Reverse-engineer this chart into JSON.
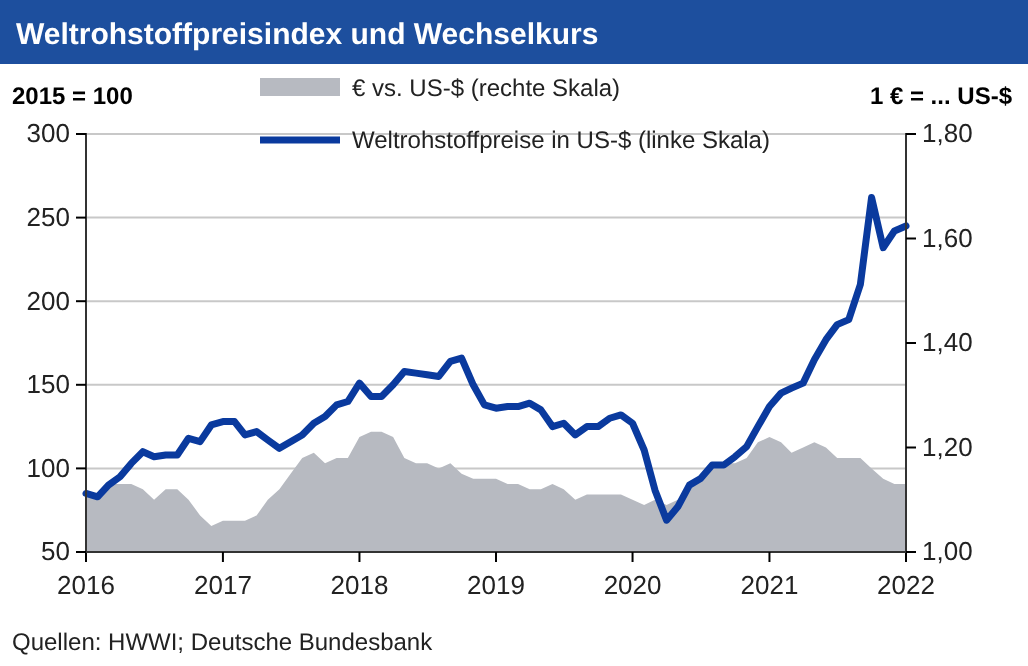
{
  "chart_data": {
    "type": "line",
    "title": "Weltrohstoffpreisindex und Wechselkurs",
    "ylabel": "2015 = 100",
    "y2label": "1 € = ... US-$",
    "x": [
      "2016-01",
      "2016-02",
      "2016-03",
      "2016-04",
      "2016-05",
      "2016-06",
      "2016-07",
      "2016-08",
      "2016-09",
      "2016-10",
      "2016-11",
      "2016-12",
      "2017-01",
      "2017-02",
      "2017-03",
      "2017-04",
      "2017-05",
      "2017-06",
      "2017-07",
      "2017-08",
      "2017-09",
      "2017-10",
      "2017-11",
      "2017-12",
      "2018-01",
      "2018-02",
      "2018-03",
      "2018-04",
      "2018-05",
      "2018-06",
      "2018-07",
      "2018-08",
      "2018-09",
      "2018-10",
      "2018-11",
      "2018-12",
      "2019-01",
      "2019-02",
      "2019-03",
      "2019-04",
      "2019-05",
      "2019-06",
      "2019-07",
      "2019-08",
      "2019-09",
      "2019-10",
      "2019-11",
      "2019-12",
      "2020-01",
      "2020-02",
      "2020-03",
      "2020-04",
      "2020-05",
      "2020-06",
      "2020-07",
      "2020-08",
      "2020-09",
      "2020-10",
      "2020-11",
      "2020-12",
      "2021-01",
      "2021-02",
      "2021-03",
      "2021-04",
      "2021-05",
      "2021-06",
      "2021-07",
      "2021-08",
      "2021-09",
      "2021-10",
      "2021-11",
      "2021-12",
      "2022-01"
    ],
    "series": [
      {
        "name": "€ vs. US-$ (rechte Skala)",
        "type": "area",
        "axis": "y2",
        "color": "#b7bac1",
        "values": [
          1.11,
          1.11,
          1.13,
          1.13,
          1.13,
          1.12,
          1.1,
          1.12,
          1.12,
          1.1,
          1.07,
          1.05,
          1.06,
          1.06,
          1.06,
          1.07,
          1.1,
          1.12,
          1.15,
          1.18,
          1.19,
          1.17,
          1.18,
          1.18,
          1.22,
          1.23,
          1.23,
          1.22,
          1.18,
          1.17,
          1.17,
          1.16,
          1.17,
          1.15,
          1.14,
          1.14,
          1.14,
          1.13,
          1.13,
          1.12,
          1.12,
          1.13,
          1.12,
          1.1,
          1.11,
          1.11,
          1.11,
          1.11,
          1.1,
          1.09,
          1.1,
          1.09,
          1.1,
          1.12,
          1.14,
          1.16,
          1.17,
          1.17,
          1.18,
          1.21,
          1.22,
          1.21,
          1.19,
          1.2,
          1.21,
          1.2,
          1.18,
          1.18,
          1.18,
          1.16,
          1.14,
          1.13,
          1.13
        ]
      },
      {
        "name": "Weltrohstoffpreise in US-$ (linke Skala)",
        "color": "#0a3a9e",
        "values": [
          85,
          83,
          90,
          95,
          103,
          110,
          107,
          108,
          108,
          118,
          116,
          126,
          128,
          128,
          120,
          122,
          117,
          112,
          116,
          120,
          127,
          131,
          138,
          140,
          151,
          143,
          143,
          150,
          158,
          157,
          156,
          155,
          164,
          166,
          150,
          138,
          136,
          137,
          137,
          139,
          135,
          125,
          127,
          120,
          125,
          125,
          130,
          132,
          127,
          111,
          87,
          69,
          77,
          90,
          94,
          102,
          102,
          107,
          113,
          125,
          137,
          145,
          148,
          151,
          165,
          177,
          186,
          189,
          210,
          262,
          232,
          242,
          245
        ]
      }
    ],
    "xlim": [
      "2016-01",
      "2022-01"
    ],
    "xticks": [
      {
        "value": "2016-01",
        "label": "2016"
      },
      {
        "value": "2017-01",
        "label": "2017"
      },
      {
        "value": "2018-01",
        "label": "2018"
      },
      {
        "value": "2019-01",
        "label": "2019"
      },
      {
        "value": "2020-01",
        "label": "2020"
      },
      {
        "value": "2021-01",
        "label": "2021"
      },
      {
        "value": "2022-01",
        "label": "2022"
      }
    ],
    "ylim": [
      50,
      300
    ],
    "yticks": [
      50,
      100,
      150,
      200,
      250,
      300
    ],
    "y2lim": [
      1.0,
      1.8
    ],
    "y2ticks": [
      {
        "value": 1.0,
        "label": "1,00"
      },
      {
        "value": 1.2,
        "label": "1,20"
      },
      {
        "value": 1.4,
        "label": "1,40"
      },
      {
        "value": 1.6,
        "label": "1,60"
      },
      {
        "value": 1.8,
        "label": "1,80"
      }
    ],
    "grid": "y",
    "legend": "top",
    "marker": "none",
    "line_style": "solid",
    "annotations": [
      "Quellen: HWWI; Deutsche Bundesbank"
    ]
  }
}
